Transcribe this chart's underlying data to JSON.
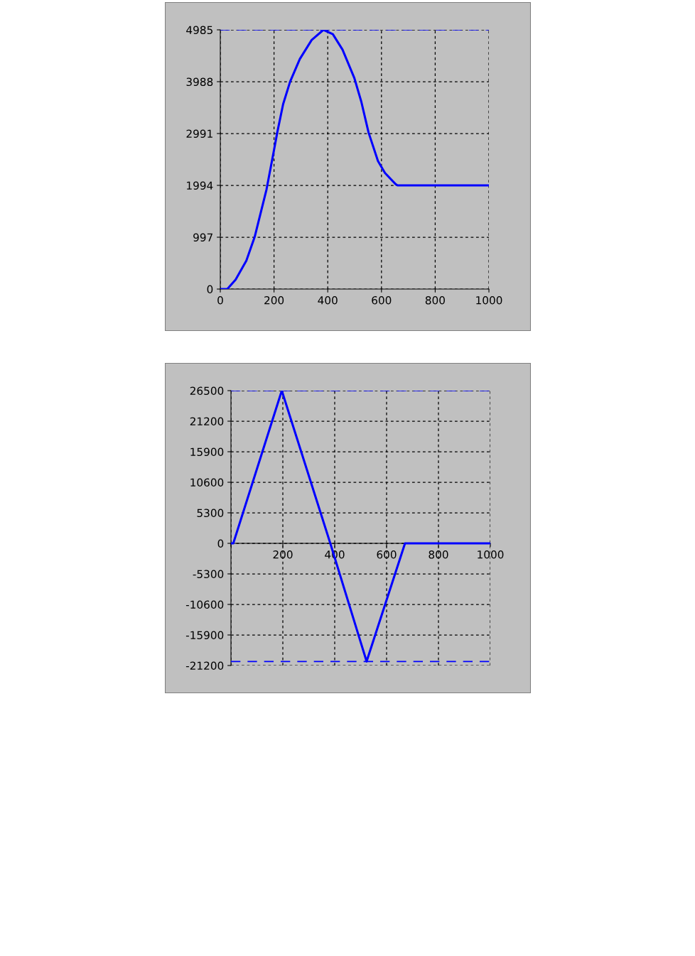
{
  "chart_data": [
    {
      "type": "line",
      "x": [
        0,
        26,
        57,
        97,
        128,
        172,
        199,
        212,
        234,
        260,
        296,
        340,
        384,
        419,
        455,
        499,
        525,
        552,
        587,
        613,
        653,
        660,
        1000
      ],
      "series": [
        {
          "color": "#0000ff",
          "values": [
            0,
            0,
            182,
            547,
            1003,
            1915,
            2645,
            3010,
            3557,
            3990,
            4423,
            4788,
            4985,
            4902,
            4605,
            4058,
            3602,
            3010,
            2462,
            2234,
            2016,
            1994,
            1994
          ]
        }
      ],
      "xlim": [
        0,
        1000
      ],
      "xticks": [
        0,
        200,
        400,
        600,
        800,
        1000
      ],
      "ylim": [
        0,
        4985
      ],
      "yticks": [
        0,
        997,
        1994,
        2991,
        3988,
        4985
      ],
      "grid": true,
      "ref_lines": [
        {
          "axis": "y",
          "value": 4985,
          "color": "#0000ff",
          "line_style": "dashed"
        }
      ]
    },
    {
      "type": "line",
      "x": [
        0,
        9,
        196,
        383,
        523,
        671,
        1000
      ],
      "series": [
        {
          "color": "#0000ff",
          "values": [
            0,
            0,
            26500,
            0,
            -20500,
            0,
            0
          ]
        }
      ],
      "xlim": [
        0,
        1000
      ],
      "xticks": [
        {
          "value": 0,
          "label": null
        },
        200,
        400,
        600,
        800,
        1000
      ],
      "ylim": [
        -21200,
        26500
      ],
      "yticks": [
        -21200,
        -15900,
        -10600,
        -5300,
        0,
        5300,
        10600,
        15900,
        21200,
        26500
      ],
      "grid": true,
      "ref_lines": [
        {
          "axis": "y",
          "value": 26500,
          "color": "#0000ff",
          "line_style": "dashed"
        },
        {
          "axis": "y",
          "value": -20500,
          "color": "#0000ff",
          "line_style": "dashed"
        }
      ]
    }
  ]
}
